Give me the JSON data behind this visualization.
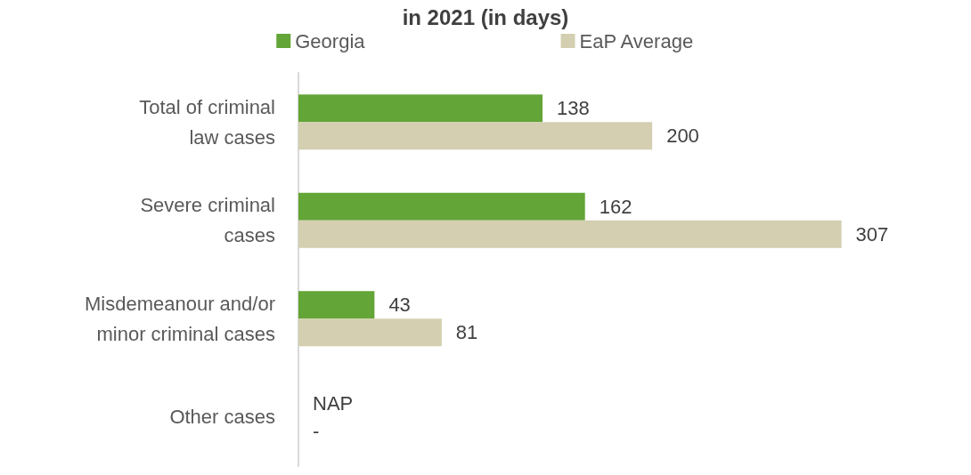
{
  "chart_data": {
    "type": "bar",
    "orientation": "horizontal",
    "title": "in 2021 (in days)",
    "categories": [
      "Total of criminal law cases",
      "Severe criminal cases",
      "Misdemeanour and/or minor criminal cases",
      "Other cases"
    ],
    "series": [
      {
        "name": "Georgia",
        "color": "#63a537",
        "values": [
          138,
          162,
          43,
          null
        ],
        "value_labels": [
          "138",
          "162",
          "43",
          "NAP"
        ]
      },
      {
        "name": "EaP Average",
        "color": "#d3cfb0",
        "values": [
          200,
          307,
          81,
          null
        ],
        "value_labels": [
          "200",
          "307",
          "81",
          "-"
        ]
      }
    ],
    "legend": "top",
    "grid": false,
    "tick_labels": "y"
  }
}
